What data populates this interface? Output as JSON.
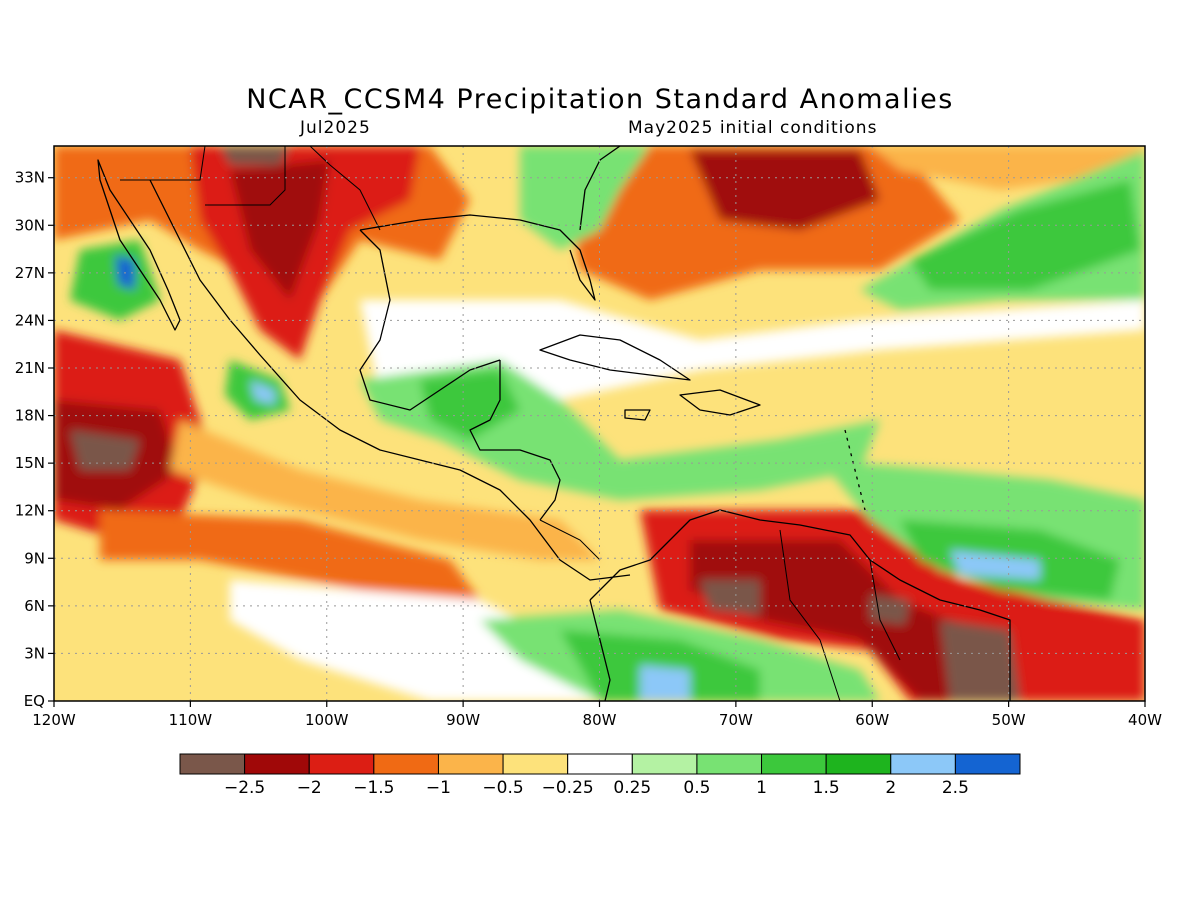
{
  "map": {
    "title": "NCAR_CCSM4 Precipitation Standard Anomalies",
    "valid_month": "Jul2025",
    "init_label": "May2025 initial conditions",
    "lon_labels": [
      "120W",
      "110W",
      "100W",
      "90W",
      "80W",
      "70W",
      "60W",
      "50W",
      "40W"
    ],
    "lat_labels": [
      "EQ",
      "3N",
      "6N",
      "9N",
      "12N",
      "15N",
      "18N",
      "21N",
      "24N",
      "27N",
      "30N",
      "33N"
    ],
    "lon_range": [
      -120,
      -40
    ],
    "lat_range": [
      0,
      35
    ],
    "grid": true
  },
  "legend": {
    "colors": [
      "#7a574a",
      "#a00808",
      "#dc1e14",
      "#f06a14",
      "#fbb44a",
      "#fde27b",
      "#ffffff",
      "#b4f2a3",
      "#78e273",
      "#3cc83c",
      "#1eb41e",
      "#8cc8f8",
      "#1464d2"
    ],
    "labels": [
      "−2.5",
      "−2",
      "−1.5",
      "−1",
      "−0.5",
      "−0.25",
      "0.25",
      "0.5",
      "1",
      "1.5",
      "2",
      "2.5"
    ]
  },
  "colors": {
    "coastline": "#000000",
    "gridline": "#999999"
  }
}
